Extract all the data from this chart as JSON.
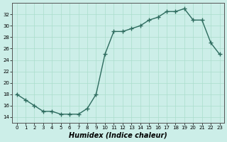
{
  "x": [
    0,
    1,
    2,
    3,
    4,
    5,
    6,
    7,
    8,
    9,
    10,
    11,
    12,
    13,
    14,
    15,
    16,
    17,
    18,
    19,
    20,
    21,
    22,
    23
  ],
  "y": [
    18,
    17,
    16,
    15,
    15,
    14.5,
    14.5,
    14.5,
    15.5,
    18,
    25,
    29,
    29,
    29.5,
    30,
    31,
    31.5,
    32.5,
    32.5,
    33,
    31,
    31,
    27,
    25
  ],
  "xlabel": "Humidex (Indice chaleur)",
  "xlim": [
    -0.5,
    23.5
  ],
  "ylim": [
    13,
    34
  ],
  "yticks": [
    14,
    16,
    18,
    20,
    22,
    24,
    26,
    28,
    30,
    32
  ],
  "xticks": [
    0,
    1,
    2,
    3,
    4,
    5,
    6,
    7,
    8,
    9,
    10,
    11,
    12,
    13,
    14,
    15,
    16,
    17,
    18,
    19,
    20,
    21,
    22,
    23
  ],
  "bg_color": "#cceee8",
  "line_color": "#2d6b5e",
  "grid_color": "#aaddcc"
}
